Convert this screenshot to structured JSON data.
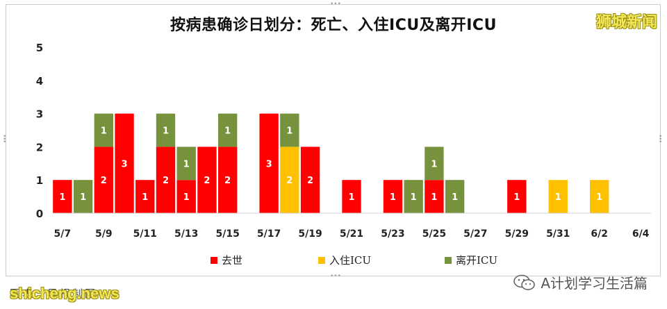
{
  "source_note": "图表：早报制图",
  "watermarks": {
    "top_right": "狮城新闻",
    "bottom_left": "shicheng.news",
    "wechat_account": "A计划学习生活篇",
    "wechat_icon": "wechat-icon"
  },
  "colors": {
    "death": "#ff0000",
    "icu": "#ffc000",
    "discharged": "#76923c",
    "axis": "#d0d0d0"
  },
  "chart_data": {
    "type": "bar",
    "stacked": true,
    "title": "按病患确诊日划分：死亡、入住ICU及离开ICU",
    "xlabel": "",
    "ylabel": "",
    "ylim": [
      0,
      5
    ],
    "yticks": [
      "0",
      "1",
      "2",
      "3",
      "4",
      "5"
    ],
    "grid": false,
    "legend_position": "bottom",
    "categories": [
      "5/7",
      "5/8",
      "5/9",
      "5/10",
      "5/11",
      "5/12",
      "5/13",
      "5/14",
      "5/15",
      "5/16",
      "5/17",
      "5/18",
      "5/19",
      "5/20",
      "5/21",
      "5/22",
      "5/23",
      "5/24",
      "5/25",
      "5/26",
      "5/27",
      "5/28",
      "5/29",
      "5/30",
      "5/31",
      "6/1",
      "6/2",
      "6/3",
      "6/4"
    ],
    "xtick_labels": [
      "5/7",
      "5/9",
      "5/11",
      "5/13",
      "5/15",
      "5/17",
      "5/19",
      "5/21",
      "5/23",
      "5/25",
      "5/27",
      "5/29",
      "5/31",
      "6/2",
      "6/4"
    ],
    "series": [
      {
        "name": "去世",
        "key": "death",
        "values": [
          1,
          0,
          2,
          3,
          1,
          2,
          1,
          2,
          2,
          0,
          3,
          0,
          2,
          0,
          1,
          0,
          1,
          0,
          1,
          0,
          0,
          0,
          1,
          0,
          0,
          0,
          0,
          0,
          0
        ]
      },
      {
        "name": "入住ICU",
        "key": "icu",
        "values": [
          0,
          0,
          0,
          0,
          0,
          0,
          0,
          0,
          0,
          0,
          0,
          2,
          0,
          0,
          0,
          0,
          0,
          0,
          0,
          0,
          0,
          0,
          0,
          0,
          1,
          0,
          1,
          0,
          0
        ]
      },
      {
        "name": "离开ICU",
        "key": "discharged",
        "values": [
          0,
          1,
          1,
          0,
          0,
          1,
          1,
          0,
          1,
          0,
          0,
          1,
          0,
          0,
          0,
          0,
          0,
          1,
          1,
          1,
          0,
          0,
          0,
          0,
          0,
          0,
          0,
          0,
          0
        ]
      }
    ]
  }
}
